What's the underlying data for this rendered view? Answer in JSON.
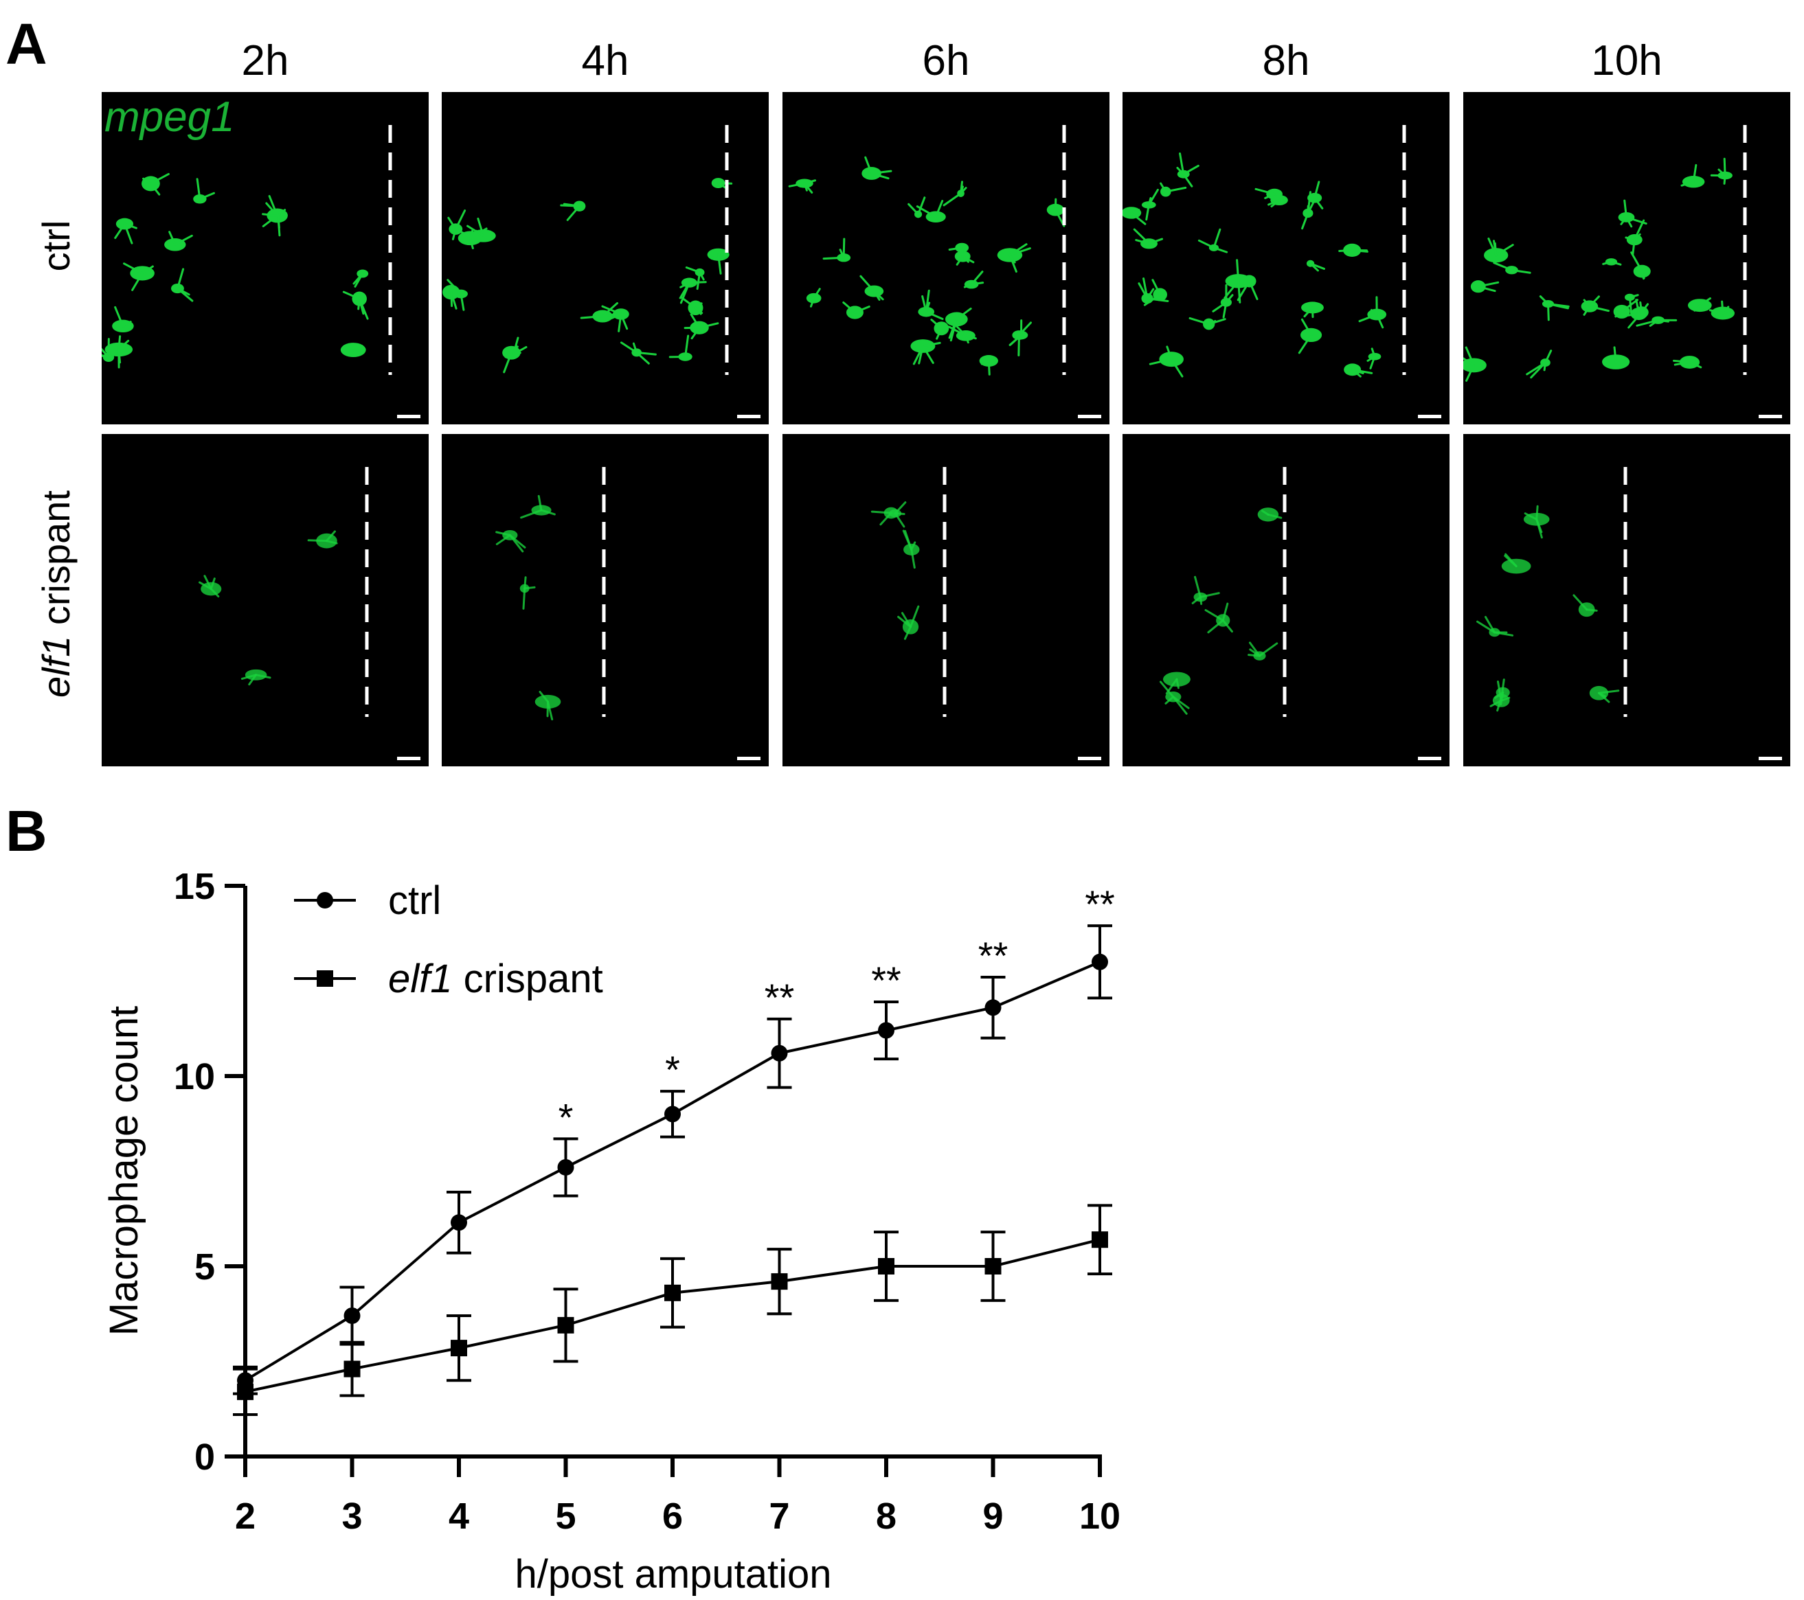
{
  "panel_a": {
    "letter": "A",
    "marker_label": "mpeg1",
    "timepoints": [
      "2h",
      "4h",
      "6h",
      "8h",
      "10h"
    ],
    "rows": [
      {
        "name": "ctrl",
        "label_gene": "",
        "label_rest": "ctrl"
      },
      {
        "name": "elf1 crispant",
        "label_gene": "elf1",
        "label_rest": " crispant"
      }
    ],
    "colors": {
      "background": "#000000",
      "cells": "#19d23c",
      "dashed_line": "#ffffff",
      "scale_bar": "#ffffff"
    }
  },
  "panel_b": {
    "letter": "B"
  },
  "chart_data": {
    "type": "line",
    "title": "",
    "xlabel": "h/post amputation",
    "ylabel": "Macrophage count",
    "x": [
      2,
      3,
      4,
      5,
      6,
      7,
      8,
      9,
      10
    ],
    "xlim": [
      2,
      10
    ],
    "ylim": [
      0,
      15
    ],
    "x_ticks": [
      "2",
      "3",
      "4",
      "5",
      "6",
      "7",
      "8",
      "9",
      "10"
    ],
    "y_ticks": [
      "0",
      "5",
      "10",
      "15"
    ],
    "legend_position": "top-left",
    "series": [
      {
        "name": "ctrl",
        "name_gene": "",
        "name_rest": "ctrl",
        "marker": "circle",
        "values": [
          2.0,
          3.7,
          6.15,
          7.6,
          9.0,
          10.6,
          11.2,
          11.8,
          13.0
        ],
        "errors": [
          0.35,
          0.75,
          0.8,
          0.75,
          0.6,
          0.9,
          0.75,
          0.8,
          0.95
        ]
      },
      {
        "name": "elf1 crispant",
        "name_gene": "elf1",
        "name_rest": " crispant",
        "marker": "square",
        "values": [
          1.7,
          2.3,
          2.85,
          3.45,
          4.3,
          4.6,
          5.0,
          5.0,
          5.7
        ],
        "errors": [
          0.6,
          0.7,
          0.85,
          0.95,
          0.9,
          0.85,
          0.9,
          0.9,
          0.9
        ]
      }
    ],
    "annotations": [
      {
        "x": 5,
        "text": "*"
      },
      {
        "x": 6,
        "text": "*"
      },
      {
        "x": 7,
        "text": "**"
      },
      {
        "x": 8,
        "text": "**"
      },
      {
        "x": 9,
        "text": "**"
      },
      {
        "x": 10,
        "text": "**"
      }
    ]
  }
}
